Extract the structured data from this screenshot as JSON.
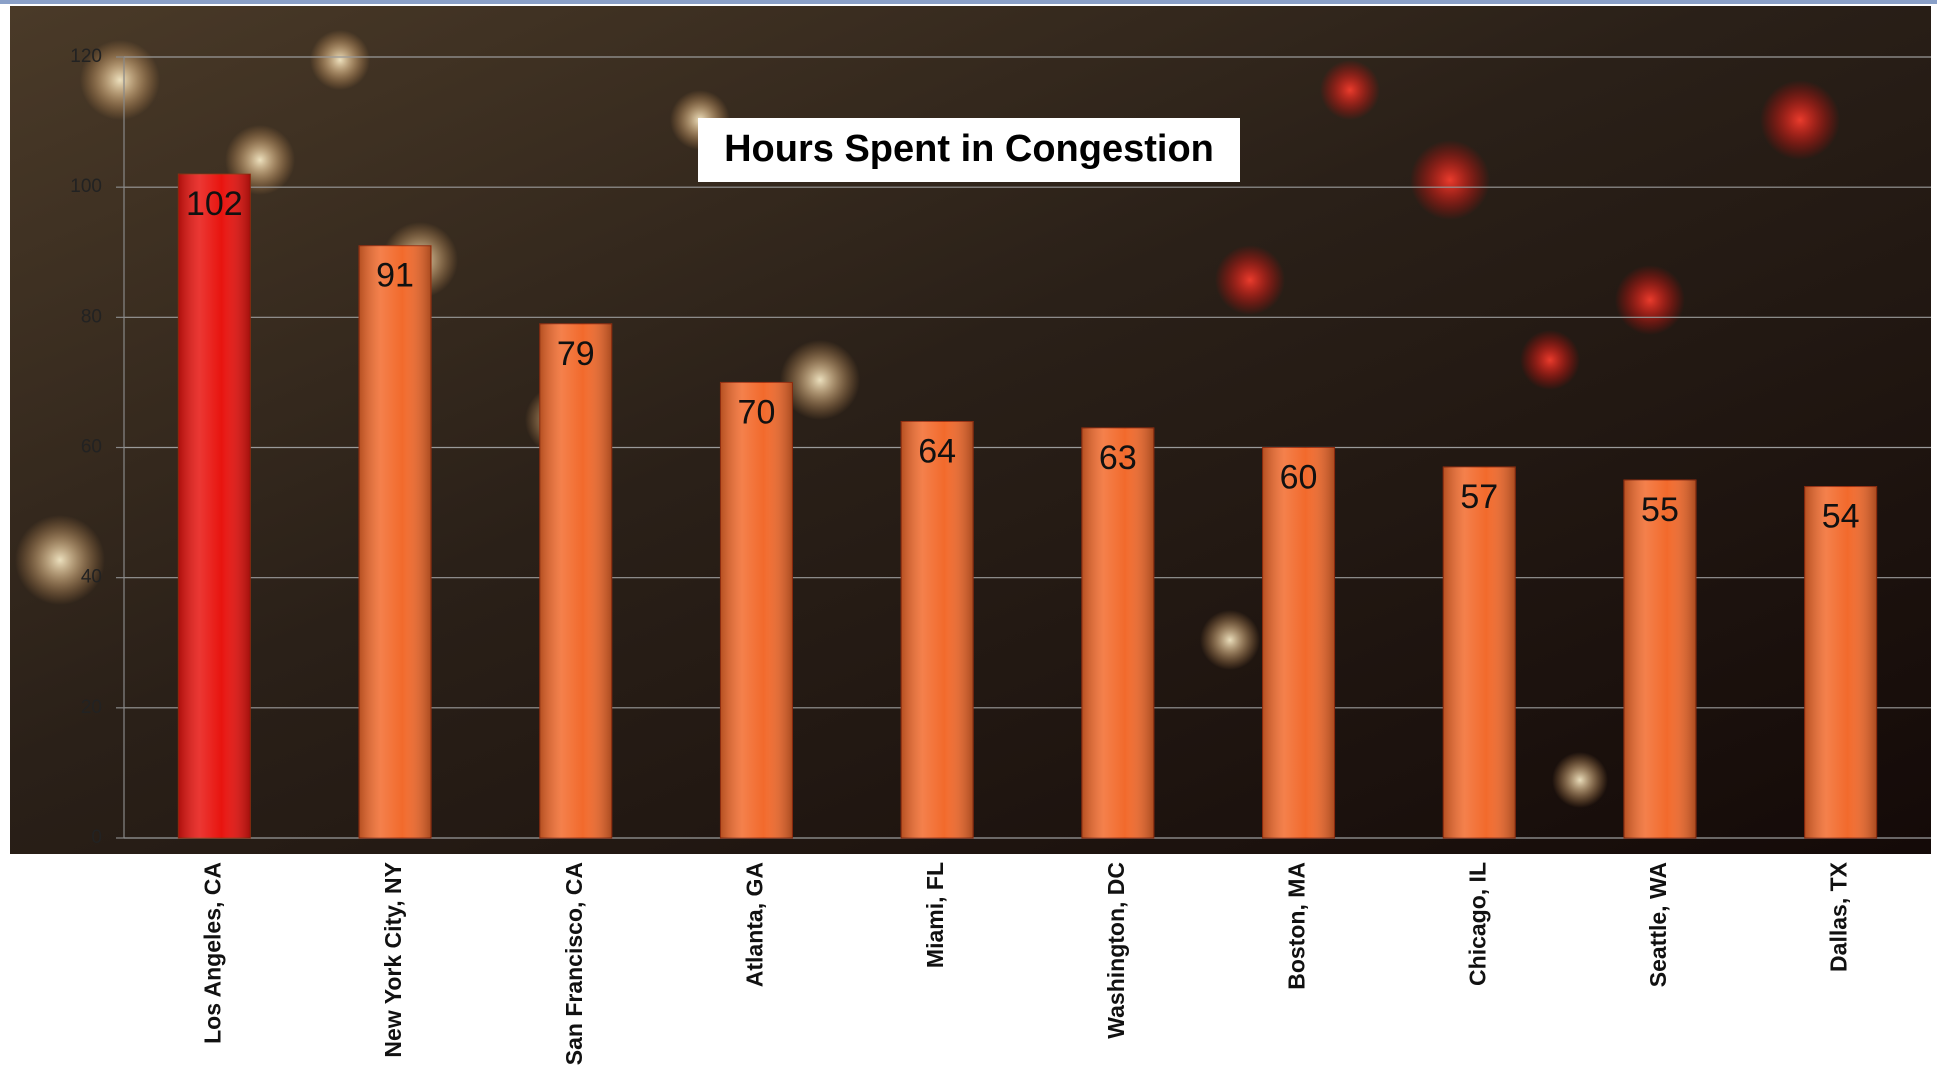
{
  "chart_data": {
    "type": "bar",
    "title": "Hours Spent in Congestion",
    "categories": [
      "Los Angeles, CA",
      "New York City, NY",
      "San Francisco, CA",
      "Atlanta, GA",
      "Miami, FL",
      "Washington, DC",
      "Boston, MA",
      "Chicago, IL",
      "Seattle, WA",
      "Dallas, TX"
    ],
    "values": [
      102,
      91,
      79,
      70,
      64,
      63,
      60,
      57,
      55,
      54
    ],
    "colors": [
      "#e8140f",
      "#f26a2c",
      "#f26a2c",
      "#f26a2c",
      "#f26a2c",
      "#f26a2c",
      "#f26a2c",
      "#f26a2c",
      "#f26a2c",
      "#f26a2c"
    ],
    "ylim": [
      0,
      120
    ],
    "yticks": [
      0,
      20,
      40,
      60,
      80,
      100,
      120
    ],
    "grid": true
  }
}
